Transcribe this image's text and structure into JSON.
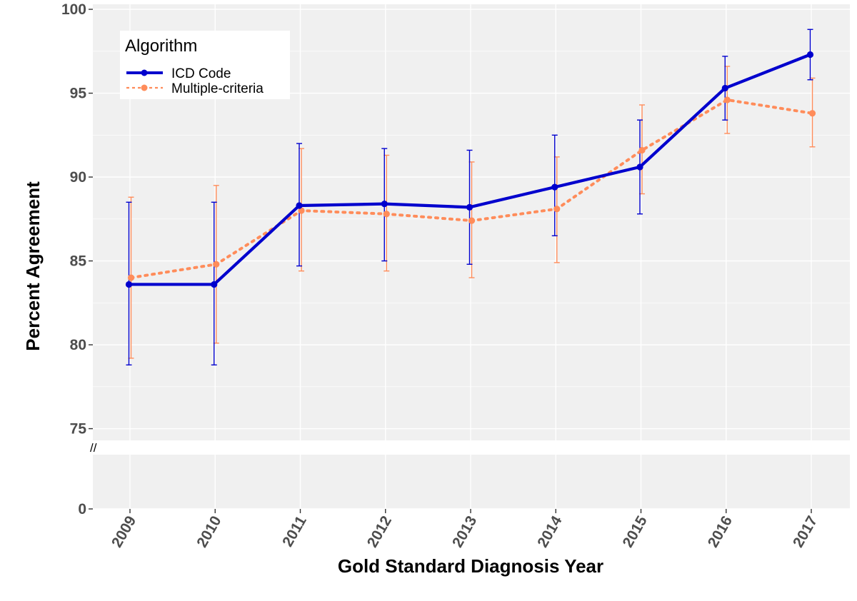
{
  "chart_data": {
    "type": "line",
    "xlabel": "Gold Standard Diagnosis Year",
    "ylabel": "Percent Agreement",
    "categories": [
      "2009",
      "2010",
      "2011",
      "2012",
      "2013",
      "2014",
      "2015",
      "2016",
      "2017"
    ],
    "y_upper_panel": {
      "ylim": [
        74.3,
        100.3
      ],
      "ticks": [
        75,
        80,
        85,
        90,
        95,
        100
      ]
    },
    "y_lower_panel": {
      "ylim": [
        0,
        3
      ],
      "ticks": [
        0
      ]
    },
    "axis_break_symbol": "//",
    "grid": true,
    "background": "#f0f0f0",
    "legend": {
      "title": "Algorithm",
      "position": "top-left"
    },
    "series": [
      {
        "name": "ICD Code",
        "color": "#0000cd",
        "line_style": "solid",
        "values": [
          83.6,
          83.6,
          88.3,
          88.4,
          88.2,
          89.4,
          90.6,
          95.3,
          97.3
        ],
        "ci_lower": [
          78.8,
          78.8,
          84.7,
          85.0,
          84.8,
          86.5,
          87.8,
          93.4,
          95.8
        ],
        "ci_upper": [
          88.5,
          88.5,
          92.0,
          91.7,
          91.6,
          92.5,
          93.4,
          97.2,
          98.8
        ]
      },
      {
        "name": "Multiple-criteria",
        "color": "#ff8c5a",
        "line_style": "dotted",
        "values": [
          84.0,
          84.8,
          88.0,
          87.8,
          87.4,
          88.1,
          91.6,
          94.6,
          93.8
        ],
        "ci_lower": [
          79.2,
          80.1,
          84.4,
          84.4,
          84.0,
          84.9,
          89.0,
          92.6,
          91.8
        ],
        "ci_upper": [
          88.8,
          89.5,
          91.7,
          91.3,
          90.9,
          91.2,
          94.3,
          96.6,
          95.9
        ]
      }
    ]
  }
}
